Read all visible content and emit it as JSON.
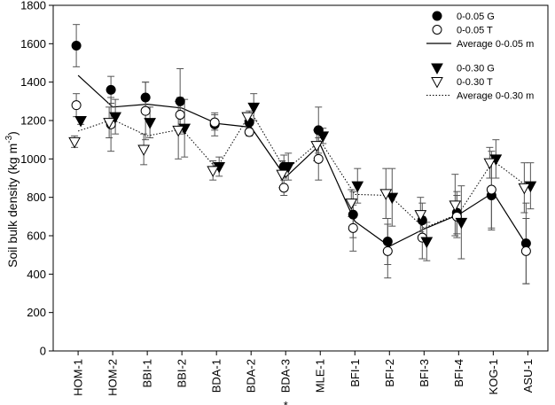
{
  "chart_data": {
    "type": "scatter",
    "ylabel": "Soil bulk density (kg m",
    "ylabel_sup": "-3",
    "ylabel_close": ")",
    "ylim": [
      0,
      1800
    ],
    "yticks": [
      0,
      200,
      400,
      600,
      800,
      1000,
      1200,
      1400,
      1600,
      1800
    ],
    "categories": [
      "HOM-1",
      "HOM-2",
      "BBI-1",
      "BBI-2",
      "BDA-1",
      "BDA-2",
      "BDA-3",
      "MLE-1",
      "BFI-1",
      "BFI-2",
      "BFI-3",
      "BFI-4",
      "KOG-1",
      "ASU-1"
    ],
    "annotation": "*",
    "annotation_category": "BDA-3",
    "series": [
      {
        "name": "0-0.05 G",
        "marker": "filled-circle",
        "values": [
          1590,
          1360,
          1320,
          1300,
          1180,
          1190,
          960,
          1150,
          710,
          570,
          680,
          720,
          810,
          560
        ],
        "err": [
          110,
          70,
          80,
          170,
          60,
          60,
          60,
          120,
          120,
          120,
          90,
          110,
          180,
          210
        ]
      },
      {
        "name": "0-0.05 T",
        "marker": "open-circle",
        "values": [
          1280,
          1180,
          1250,
          1230,
          1190,
          1140,
          850,
          1000,
          640,
          520,
          590,
          700,
          840,
          520
        ],
        "err": [
          60,
          140,
          150,
          90,
          40,
          20,
          40,
          110,
          120,
          140,
          110,
          110,
          200,
          170
        ]
      },
      {
        "name": "Average 0-0.05 m",
        "line": "solid",
        "values": [
          1435,
          1270,
          1285,
          1265,
          1185,
          1165,
          905,
          1075,
          675,
          545,
          635,
          710,
          825,
          540
        ]
      },
      {
        "name": "0-0.30 G",
        "marker": "filled-triangle-down",
        "values": [
          1200,
          1220,
          1190,
          1160,
          960,
          1270,
          960,
          1120,
          860,
          800,
          570,
          670,
          1000,
          860
        ],
        "err": [
          20,
          90,
          80,
          150,
          50,
          70,
          70,
          40,
          90,
          150,
          100,
          190,
          100,
          120
        ]
      },
      {
        "name": "0-0.30 T",
        "marker": "open-triangle-down",
        "values": [
          1090,
          1190,
          1050,
          1150,
          940,
          1220,
          920,
          1070,
          770,
          820,
          710,
          760,
          980,
          850
        ],
        "err": [
          30,
          80,
          80,
          150,
          50,
          20,
          70,
          80,
          70,
          130,
          90,
          160,
          80,
          130
        ]
      },
      {
        "name": "Average 0-0.30 m",
        "line": "dotted",
        "values": [
          1145,
          1205,
          1120,
          1155,
          950,
          1245,
          940,
          1095,
          815,
          810,
          640,
          715,
          990,
          855
        ]
      }
    ],
    "legend": [
      {
        "label": "0-0.05 G",
        "symbol": "filled-circle"
      },
      {
        "label": "0-0.05 T",
        "symbol": "open-circle"
      },
      {
        "label": "Average 0-0.05 m",
        "symbol": "solid-line"
      },
      {
        "label": "0-0.30 G",
        "symbol": "filled-triangle-down"
      },
      {
        "label": "0-0.30 T",
        "symbol": "open-triangle-down"
      },
      {
        "label": "Average 0-0.30 m",
        "symbol": "dotted-line"
      }
    ],
    "legend_position": "top-right",
    "grid": false
  }
}
